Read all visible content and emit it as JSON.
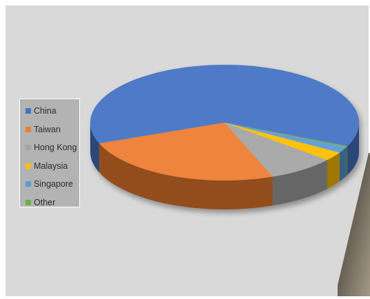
{
  "chart_data": {
    "type": "pie",
    "style": "3d",
    "categories": [
      "China",
      "Taiwan",
      "Hong Kong",
      "Malaysia",
      "Singapore",
      "Other"
    ],
    "values": [
      62.5,
      25.0,
      8.0,
      2.5,
      1.7,
      0.3
    ],
    "colors": [
      "#4472c4",
      "#ed7d31",
      "#a5a5a5",
      "#ffc000",
      "#5b9bd5",
      "#70ad47"
    ],
    "title": "",
    "legend_position": "left"
  }
}
